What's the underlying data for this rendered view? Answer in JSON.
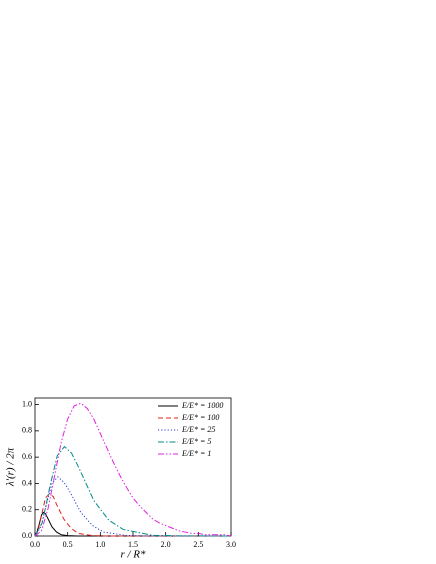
{
  "chart_data": {
    "type": "line",
    "xlabel": "r / R*",
    "ylabel": "λ'(r) / 2π",
    "xlim": [
      0,
      3.0
    ],
    "ylim": [
      0,
      1.05
    ],
    "xticks": [
      {
        "value": 0,
        "label": "0.0"
      },
      0.5,
      {
        "value": 1,
        "label": "1.0"
      },
      1.5,
      {
        "value": 2,
        "label": "2.0"
      },
      2.5,
      {
        "value": 3,
        "label": "3.0"
      }
    ],
    "yticks": [
      {
        "value": 0,
        "label": "0.0"
      },
      0.2,
      0.4,
      0.6,
      0.8,
      {
        "value": 1,
        "label": "1.0"
      }
    ],
    "legend": "upper right",
    "series": [
      {
        "name": "E/E* = 1000",
        "color": "#000000",
        "linestyle": "solid",
        "x": [
          0,
          0.03,
          0.07,
          0.1,
          0.13,
          0.16,
          0.2,
          0.26,
          0.33,
          0.4,
          0.5,
          0.65,
          3.0
        ],
        "values": [
          0,
          0.03,
          0.1,
          0.16,
          0.18,
          0.17,
          0.13,
          0.07,
          0.03,
          0.01,
          0.003,
          0,
          0
        ]
      },
      {
        "name": "E/E* = 100",
        "color": "#e8201a",
        "linestyle": "dashed",
        "x": [
          0,
          0.05,
          0.11,
          0.16,
          0.22,
          0.28,
          0.33,
          0.44,
          0.55,
          0.66,
          0.88,
          1.1,
          3.0
        ],
        "values": [
          0,
          0.05,
          0.18,
          0.29,
          0.32,
          0.3,
          0.24,
          0.13,
          0.06,
          0.02,
          0.003,
          0,
          0
        ]
      },
      {
        "name": "E/E* = 25",
        "color": "#2a3fd6",
        "linestyle": "dotted",
        "x": [
          0,
          0.09,
          0.18,
          0.26,
          0.35,
          0.44,
          0.53,
          0.7,
          0.88,
          1.05,
          1.4,
          1.75,
          3.0
        ],
        "values": [
          0,
          0.07,
          0.25,
          0.4,
          0.45,
          0.41,
          0.34,
          0.18,
          0.08,
          0.03,
          0.004,
          0,
          0
        ]
      },
      {
        "name": "E/E* = 5",
        "color": "#008b8b",
        "linestyle": "dashdot",
        "x": [
          0,
          0.11,
          0.23,
          0.34,
          0.45,
          0.56,
          0.68,
          0.9,
          1.13,
          1.35,
          1.8,
          2.25,
          3.0
        ],
        "values": [
          0,
          0.1,
          0.38,
          0.61,
          0.68,
          0.63,
          0.51,
          0.27,
          0.12,
          0.05,
          0.005,
          0.001,
          0
        ]
      },
      {
        "name": "E/E* = 1",
        "color": "#e020e0",
        "linestyle": "dashdotdot",
        "x": [
          0,
          0.1,
          0.2,
          0.3,
          0.4,
          0.5,
          0.6,
          0.7,
          0.8,
          0.9,
          1.0,
          1.1,
          1.2,
          1.3,
          1.4,
          1.5,
          1.6,
          1.7,
          1.8,
          1.9,
          2.0,
          2.1,
          2.2,
          2.3,
          2.4,
          2.5,
          2.6,
          2.7,
          2.8,
          2.9,
          3.0
        ],
        "values": [
          0,
          0.04,
          0.21,
          0.46,
          0.71,
          0.89,
          0.99,
          1.01,
          0.97,
          0.89,
          0.78,
          0.67,
          0.56,
          0.46,
          0.37,
          0.29,
          0.23,
          0.18,
          0.13,
          0.1,
          0.08,
          0.06,
          0.04,
          0.03,
          0.02,
          0.02,
          0.01,
          0.01,
          0.01,
          0.01,
          0
        ]
      }
    ]
  }
}
